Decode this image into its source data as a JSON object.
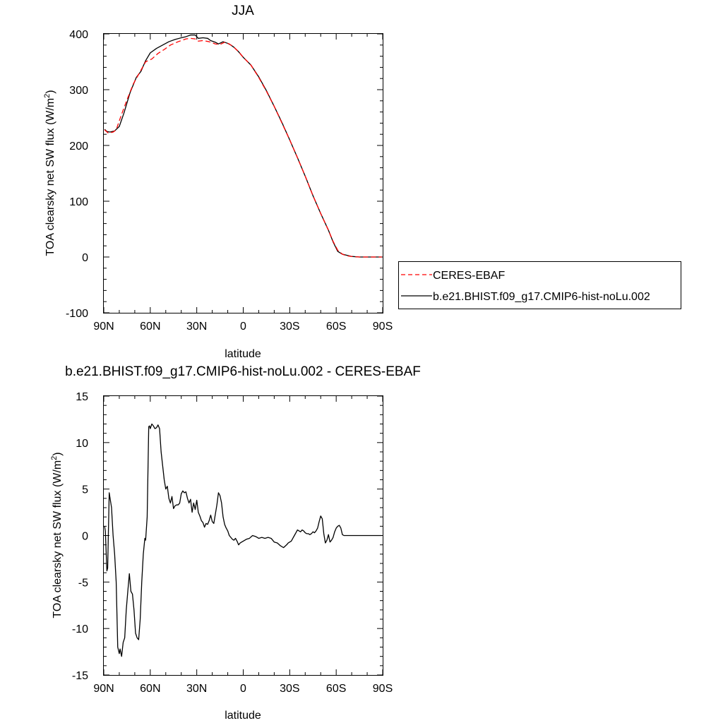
{
  "chart_data": [
    {
      "type": "line",
      "title": "JJA",
      "xlabel": "latitude",
      "ylabel": "TOA clearsky net SW flux (W/m²)",
      "ylabel_main": "TOA clearsky net SW flux (W/m",
      "ylabel_sup": "2",
      "ylabel_close": ")",
      "xlim": [
        90,
        -90
      ],
      "ylim": [
        -100,
        400
      ],
      "xticks": [
        90,
        60,
        30,
        0,
        -30,
        -60,
        -90
      ],
      "xtick_labels": [
        "90N",
        "60N",
        "30N",
        "0",
        "30S",
        "60S",
        "90S"
      ],
      "yticks": [
        -100,
        0,
        100,
        200,
        300,
        400
      ],
      "ytick_labels": [
        "-100",
        "0",
        "100",
        "200",
        "300",
        "400"
      ],
      "legend_placement": "right",
      "series": [
        {
          "name": "CERES-EBAF",
          "color": "#ff0000",
          "dash": "dashed",
          "points": [
            [
              89.5,
              228
            ],
            [
              87,
              222
            ],
            [
              84,
              224
            ],
            [
              82,
              228
            ],
            [
              79,
              252
            ],
            [
              75,
              282
            ],
            [
              71,
              310
            ],
            [
              67,
              330
            ],
            [
              63,
              350
            ],
            [
              59,
              355
            ],
            [
              55,
              365
            ],
            [
              51,
              372
            ],
            [
              47,
              380
            ],
            [
              42,
              386
            ],
            [
              37,
              391
            ],
            [
              34,
              392
            ],
            [
              31,
              391
            ],
            [
              29,
              387
            ],
            [
              26,
              388
            ],
            [
              22,
              386
            ],
            [
              18,
              382
            ],
            [
              15,
              381
            ],
            [
              12,
              385
            ],
            [
              9,
              382
            ],
            [
              6,
              376
            ],
            [
              3,
              368
            ],
            [
              0,
              358
            ],
            [
              -5,
              344
            ],
            [
              -10,
              322
            ],
            [
              -15,
              297
            ],
            [
              -20,
              270
            ],
            [
              -25,
              240
            ],
            [
              -30,
              210
            ],
            [
              -35,
              178
            ],
            [
              -40,
              145
            ],
            [
              -45,
              110
            ],
            [
              -50,
              78
            ],
            [
              -55,
              48
            ],
            [
              -58,
              28
            ],
            [
              -61,
              12
            ],
            [
              -64,
              5
            ],
            [
              -67,
              2
            ],
            [
              -70,
              1
            ],
            [
              -75,
              0
            ],
            [
              -80,
              0
            ],
            [
              -85,
              0
            ],
            [
              -89.5,
              0
            ]
          ]
        },
        {
          "name": "b.e21.BHIST.f09_g17.CMIP6-hist-noLu.002",
          "color": "#000000",
          "dash": "solid",
          "points": [
            [
              89.5,
              229
            ],
            [
              88,
              225
            ],
            [
              86,
              224
            ],
            [
              83,
              226
            ],
            [
              80,
              234
            ],
            [
              77,
              258
            ],
            [
              73,
              295
            ],
            [
              69,
              322
            ],
            [
              66,
              333
            ],
            [
              63,
              352
            ],
            [
              60,
              366
            ],
            [
              56,
              374
            ],
            [
              52,
              380
            ],
            [
              48,
              386
            ],
            [
              44,
              390
            ],
            [
              40,
              393
            ],
            [
              37,
              395
            ],
            [
              34,
              398
            ],
            [
              31,
              398
            ],
            [
              29,
              392
            ],
            [
              26,
              393
            ],
            [
              23,
              392
            ],
            [
              21,
              388
            ],
            [
              18,
              385
            ],
            [
              16,
              382
            ],
            [
              13,
              386
            ],
            [
              10,
              383
            ],
            [
              8,
              380
            ],
            [
              6,
              376
            ],
            [
              3,
              368
            ],
            [
              0,
              358
            ],
            [
              -5,
              344
            ],
            [
              -10,
              323
            ],
            [
              -15,
              298
            ],
            [
              -20,
              270
            ],
            [
              -25,
              241
            ],
            [
              -30,
              210
            ],
            [
              -35,
              178
            ],
            [
              -40,
              145
            ],
            [
              -45,
              110
            ],
            [
              -50,
              78
            ],
            [
              -55,
              48
            ],
            [
              -58,
              27
            ],
            [
              -61,
              10
            ],
            [
              -64,
              5
            ],
            [
              -67,
              3
            ],
            [
              -70,
              1
            ],
            [
              -75,
              0
            ],
            [
              -80,
              0
            ],
            [
              -85,
              0
            ],
            [
              -89.5,
              0
            ]
          ]
        }
      ]
    },
    {
      "type": "line",
      "title": "b.e21.BHIST.f09_g17.CMIP6-hist-noLu.002 - CERES-EBAF",
      "xlabel": "latitude",
      "ylabel": "TOA clearsky net SW flux (W/m²)",
      "ylabel_main": "TOA clearsky net SW flux (W/m",
      "ylabel_sup": "2",
      "ylabel_close": ")",
      "xlim": [
        90,
        -90
      ],
      "ylim": [
        -15,
        15
      ],
      "xticks": [
        90,
        60,
        30,
        0,
        -30,
        -60,
        -90
      ],
      "xtick_labels": [
        "90N",
        "60N",
        "30N",
        "0",
        "30S",
        "60S",
        "90S"
      ],
      "yticks": [
        -15,
        -10,
        -5,
        0,
        5,
        10,
        15
      ],
      "ytick_labels": [
        "-15",
        "-10",
        "-5",
        "0",
        "5",
        "10",
        "15"
      ],
      "series": [
        {
          "color": "#000000",
          "dash": "solid",
          "points": [
            [
              89.5,
              1
            ],
            [
              89,
              0.5
            ],
            [
              88,
              -3.8
            ],
            [
              87.5,
              -3.5
            ],
            [
              86.5,
              4.6
            ],
            [
              85,
              3
            ],
            [
              84,
              0
            ],
            [
              83,
              -2
            ],
            [
              82,
              -5
            ],
            [
              81,
              -12
            ],
            [
              80,
              -12.7
            ],
            [
              79.5,
              -12.2
            ],
            [
              78.5,
              -13
            ],
            [
              77.5,
              -11.5
            ],
            [
              76.5,
              -11
            ],
            [
              75.5,
              -8
            ],
            [
              74.5,
              -6
            ],
            [
              73.5,
              -4.1
            ],
            [
              72.5,
              -6
            ],
            [
              71.5,
              -6.3
            ],
            [
              70.5,
              -8
            ],
            [
              69.5,
              -10.5
            ],
            [
              68.5,
              -11
            ],
            [
              67.5,
              -11.2
            ],
            [
              66.5,
              -9
            ],
            [
              65.5,
              -5
            ],
            [
              64.5,
              -2
            ],
            [
              63.5,
              -0.3
            ],
            [
              63,
              -0.5
            ],
            [
              62,
              2
            ],
            [
              61,
              11.7
            ],
            [
              60.5,
              11.8
            ],
            [
              60,
              11.5
            ],
            [
              59,
              12
            ],
            [
              58,
              11.8
            ],
            [
              57,
              11.5
            ],
            [
              56,
              11.6
            ],
            [
              55,
              11.9
            ],
            [
              54,
              11.5
            ],
            [
              53,
              9
            ],
            [
              52,
              7.5
            ],
            [
              51,
              6
            ],
            [
              50,
              5
            ],
            [
              49,
              5.3
            ],
            [
              48,
              4
            ],
            [
              47,
              3.5
            ],
            [
              46,
              4.2
            ],
            [
              45,
              2.9
            ],
            [
              44,
              3.2
            ],
            [
              43,
              3.3
            ],
            [
              42,
              3.3
            ],
            [
              41,
              3.5
            ],
            [
              40,
              4.5
            ],
            [
              39,
              4.8
            ],
            [
              38,
              4.6
            ],
            [
              37,
              4.7
            ],
            [
              36,
              4
            ],
            [
              35,
              3.5
            ],
            [
              34,
              3.9
            ],
            [
              33,
              2.5
            ],
            [
              32,
              3.5
            ],
            [
              31,
              2.8
            ],
            [
              30,
              3.8
            ],
            [
              29,
              2.5
            ],
            [
              28,
              2.1
            ],
            [
              27,
              1.6
            ],
            [
              26,
              1.4
            ],
            [
              25,
              0.9
            ],
            [
              24,
              1.3
            ],
            [
              23,
              1.2
            ],
            [
              22,
              1.6
            ],
            [
              21,
              2.2
            ],
            [
              20,
              1.5
            ],
            [
              19,
              1.3
            ],
            [
              18,
              2.3
            ],
            [
              17,
              3.3
            ],
            [
              16,
              4.6
            ],
            [
              15,
              4.3
            ],
            [
              14,
              3.5
            ],
            [
              13,
              2
            ],
            [
              12,
              1.2
            ],
            [
              11,
              0.8
            ],
            [
              10,
              0.5
            ],
            [
              9,
              0
            ],
            [
              8,
              -0.2
            ],
            [
              7,
              -0.4
            ],
            [
              6,
              -0.5
            ],
            [
              5,
              -0.3
            ],
            [
              4,
              -0.6
            ],
            [
              3,
              -1
            ],
            [
              2,
              -0.8
            ],
            [
              1,
              -0.7
            ],
            [
              0,
              -0.6
            ],
            [
              -2,
              -0.4
            ],
            [
              -4,
              -0.3
            ],
            [
              -6,
              0
            ],
            [
              -8,
              -0.1
            ],
            [
              -10,
              -0.3
            ],
            [
              -12,
              -0.2
            ],
            [
              -14,
              -0.3
            ],
            [
              -16,
              -0.2
            ],
            [
              -18,
              -0.3
            ],
            [
              -20,
              -0.7
            ],
            [
              -22,
              -0.8
            ],
            [
              -24,
              -1.1
            ],
            [
              -26,
              -1.3
            ],
            [
              -28,
              -1
            ],
            [
              -29,
              -0.8
            ],
            [
              -30,
              -0.7
            ],
            [
              -31,
              -0.6
            ],
            [
              -32,
              -0.3
            ],
            [
              -33,
              0
            ],
            [
              -34,
              0.3
            ],
            [
              -35,
              0.6
            ],
            [
              -36,
              0.5
            ],
            [
              -37,
              0.4
            ],
            [
              -38,
              0.6
            ],
            [
              -39,
              0.5
            ],
            [
              -40,
              0.3
            ],
            [
              -41,
              0.2
            ],
            [
              -42,
              0.2
            ],
            [
              -43,
              0.1
            ],
            [
              -44,
              0.2
            ],
            [
              -45,
              0.4
            ],
            [
              -46,
              0.3
            ],
            [
              -47,
              0.5
            ],
            [
              -48,
              0.8
            ],
            [
              -49,
              1.5
            ],
            [
              -50,
              2.1
            ],
            [
              -51,
              1.8
            ],
            [
              -52,
              0.2
            ],
            [
              -53,
              -0.8
            ],
            [
              -54,
              -0.5
            ],
            [
              -55,
              0.1
            ],
            [
              -56,
              -0.7
            ],
            [
              -57,
              -0.5
            ],
            [
              -58,
              -0.2
            ],
            [
              -59,
              0.4
            ],
            [
              -60,
              0.8
            ],
            [
              -61,
              1
            ],
            [
              -62,
              1.1
            ],
            [
              -63,
              0.8
            ],
            [
              -64,
              0.1
            ],
            [
              -65,
              0
            ],
            [
              -70,
              0
            ],
            [
              -75,
              0
            ],
            [
              -80,
              0
            ],
            [
              -85,
              0
            ],
            [
              -89.5,
              0
            ]
          ]
        }
      ]
    }
  ]
}
